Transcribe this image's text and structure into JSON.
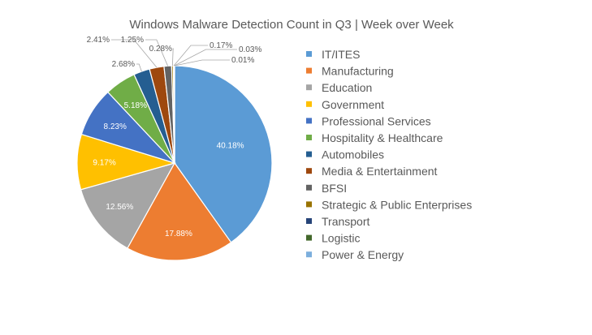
{
  "chart_data": {
    "type": "pie",
    "title": "Windows Malware Detection Count in Q3 | Week over Week",
    "legend_position": "right",
    "slices": [
      {
        "name": "IT/ITES",
        "value": 40.18,
        "label": "40.18%",
        "color": "#5b9bd5"
      },
      {
        "name": "Manufacturing",
        "value": 17.88,
        "label": "17.88%",
        "color": "#ed7d31"
      },
      {
        "name": "Education",
        "value": 12.56,
        "label": "12.56%",
        "color": "#a5a5a5"
      },
      {
        "name": "Government",
        "value": 9.17,
        "label": "9.17%",
        "color": "#ffc000"
      },
      {
        "name": "Professional Services",
        "value": 8.23,
        "label": "8.23%",
        "color": "#4472c4"
      },
      {
        "name": "Hospitality & Healthcare",
        "value": 5.18,
        "label": "5.18%",
        "color": "#70ad47"
      },
      {
        "name": "Automobiles",
        "value": 2.68,
        "label": "2.68%",
        "color": "#255e91"
      },
      {
        "name": "Media & Entertainment",
        "value": 2.41,
        "label": "2.41%",
        "color": "#9e480e"
      },
      {
        "name": "BFSI",
        "value": 1.25,
        "label": "1.25%",
        "color": "#636363"
      },
      {
        "name": "Strategic & Public Enterprises",
        "value": 0.28,
        "label": "0.28%",
        "color": "#997300"
      },
      {
        "name": "Transport",
        "value": 0.17,
        "label": "0.17%",
        "color": "#264478"
      },
      {
        "name": "Logistic",
        "value": 0.03,
        "label": "0.03%",
        "color": "#43682b"
      },
      {
        "name": "Power & Energy",
        "value": 0.01,
        "label": "0.01%",
        "color": "#7cafdd"
      }
    ]
  }
}
